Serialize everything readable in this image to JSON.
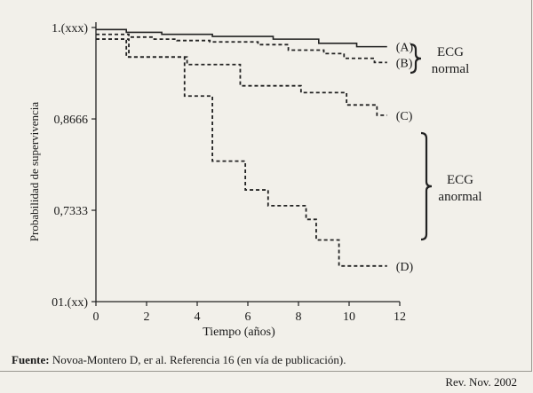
{
  "source": {
    "label": "Fuente:",
    "text": " Novoa-Montero D, er al. Referencia 16 (en vía de publicación)."
  },
  "journal": "Rev. Nov. 2002",
  "groups": [
    {
      "label": "ECG\nnormal",
      "series": [
        "(A)",
        "(B)"
      ]
    },
    {
      "label": "ECG\nanormal",
      "series": [
        "(C)",
        "(D)"
      ]
    }
  ],
  "chart_data": {
    "type": "line",
    "title": "",
    "xlabel": "Tiempo (años)",
    "ylabel": "Probabilidad de supervivencia",
    "xlim": [
      0,
      12
    ],
    "ylim": [
      0.6,
      1.0
    ],
    "xticks": [
      0,
      2,
      4,
      6,
      8,
      10,
      12
    ],
    "xtick_labels": [
      "0",
      "2",
      "4",
      "6",
      "8",
      "10",
      "12"
    ],
    "yticks": [
      0.6,
      0.7333,
      0.8666,
      1.0
    ],
    "ytick_labels": [
      "01.(xx)",
      "0,7333",
      "0,8666",
      "1.(xxx)"
    ],
    "grid": false,
    "step": true,
    "series": [
      {
        "name": "(A)",
        "style": "solid",
        "x": [
          0.3,
          1.2,
          2.6,
          4.6,
          7.0,
          8.8,
          10.3,
          11.5
        ],
        "y": [
          0.997,
          0.993,
          0.99,
          0.987,
          0.983,
          0.977,
          0.972,
          0.972
        ]
      },
      {
        "name": "(B)",
        "style": "dashed",
        "x": [
          0.3,
          1.3,
          2.3,
          3.2,
          4.5,
          6.4,
          7.6,
          9.0,
          9.8,
          11.0,
          11.5
        ],
        "y": [
          0.99,
          0.986,
          0.983,
          0.981,
          0.979,
          0.975,
          0.967,
          0.962,
          0.955,
          0.949,
          0.949
        ]
      },
      {
        "name": "(C)",
        "style": "dashed",
        "x": [
          0.3,
          1.2,
          3.6,
          5.7,
          8.1,
          9.9,
          11.1,
          11.5
        ],
        "y": [
          0.983,
          0.957,
          0.946,
          0.915,
          0.905,
          0.887,
          0.872,
          0.872
        ]
      },
      {
        "name": "(D)",
        "style": "dashed",
        "x": [
          0.3,
          1.3,
          3.5,
          4.6,
          5.9,
          6.8,
          8.3,
          8.7,
          9.6,
          11.5
        ],
        "y": [
          0.983,
          0.957,
          0.9,
          0.805,
          0.763,
          0.74,
          0.72,
          0.69,
          0.652,
          0.652
        ]
      }
    ]
  }
}
